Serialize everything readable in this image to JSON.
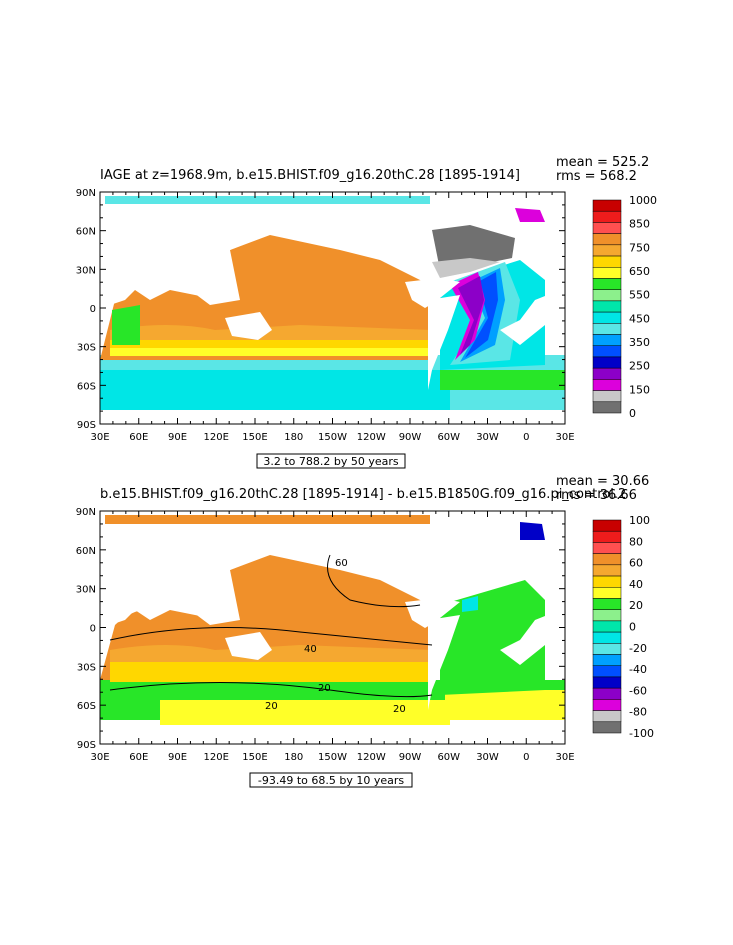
{
  "chart_data": [
    {
      "type": "heatmap",
      "title": "IAGE at z=1968.9m, b.e15.BHIST.f09_g16.20thC.28 [1895-1914]",
      "stats": [
        "mean = 525.2",
        "rms = 568.2"
      ],
      "contour_note": "3.2 to 788.2 by 50 years",
      "x_ticks": [
        "30E",
        "60E",
        "90E",
        "120E",
        "150E",
        "180",
        "150W",
        "120W",
        "90W",
        "60W",
        "30W",
        "0",
        "30E"
      ],
      "y_ticks": [
        "90N",
        "60N",
        "30N",
        "0",
        "30S",
        "60S",
        "90S"
      ],
      "colorbar": {
        "labels": [
          "1000",
          "850",
          "750",
          "650",
          "550",
          "450",
          "350",
          "250",
          "150",
          "0"
        ],
        "colors": [
          "#c80000",
          "#ee1c1c",
          "#ff5050",
          "#f0902a",
          "#f5a830",
          "#ffd700",
          "#ffff28",
          "#28e628",
          "#8cf08c",
          "#00e6aa",
          "#00e6e6",
          "#5ae6e6",
          "#00a0ff",
          "#0050ff",
          "#0000c8",
          "#8c00c8",
          "#dc00dc",
          "#c8c8c8",
          "#707070"
        ]
      }
    },
    {
      "type": "heatmap",
      "title": "b.e15.BHIST.f09_g16.20thC.28 [1895-1914] - b.e15.B1850G.f09_g16.pi_control.2",
      "stats": [
        "mean = 30.66",
        "rms = 36.66"
      ],
      "contour_note": "-93.49 to 68.5 by 10 years",
      "contour_labels": [
        "60",
        "40",
        "20",
        "20",
        "20"
      ],
      "x_ticks": [
        "30E",
        "60E",
        "90E",
        "120E",
        "150E",
        "180",
        "150W",
        "120W",
        "90W",
        "60W",
        "30W",
        "0",
        "30E"
      ],
      "y_ticks": [
        "90N",
        "60N",
        "30N",
        "0",
        "30S",
        "60S",
        "90S"
      ],
      "colorbar": {
        "labels": [
          "100",
          "80",
          "60",
          "40",
          "20",
          "0",
          "-20",
          "-40",
          "-60",
          "-80",
          "-100"
        ],
        "colors": [
          "#c80000",
          "#ee1c1c",
          "#ff5050",
          "#f0902a",
          "#f5a830",
          "#ffd700",
          "#ffff28",
          "#28e628",
          "#8cf08c",
          "#00e6aa",
          "#00e6e6",
          "#5ae6e6",
          "#00a0ff",
          "#0050ff",
          "#0000c8",
          "#8c00c8",
          "#dc00dc",
          "#c8c8c8",
          "#707070"
        ]
      }
    }
  ],
  "colors": {
    "orange": "#f0902a",
    "orange_light": "#f5a830",
    "gold": "#ffd700",
    "yellow": "#ffff28",
    "green": "#28e628",
    "green_light": "#8cf08c",
    "teal": "#00e6aa",
    "cyan": "#00e6e6",
    "cyan_light": "#5ae6e6",
    "blue": "#00a0ff",
    "blue_dark": "#0050ff",
    "navy": "#0000c8",
    "purple": "#8c00c8",
    "magenta": "#dc00dc",
    "gray_light": "#c8c8c8",
    "gray": "#707070",
    "red": "#c80000"
  }
}
